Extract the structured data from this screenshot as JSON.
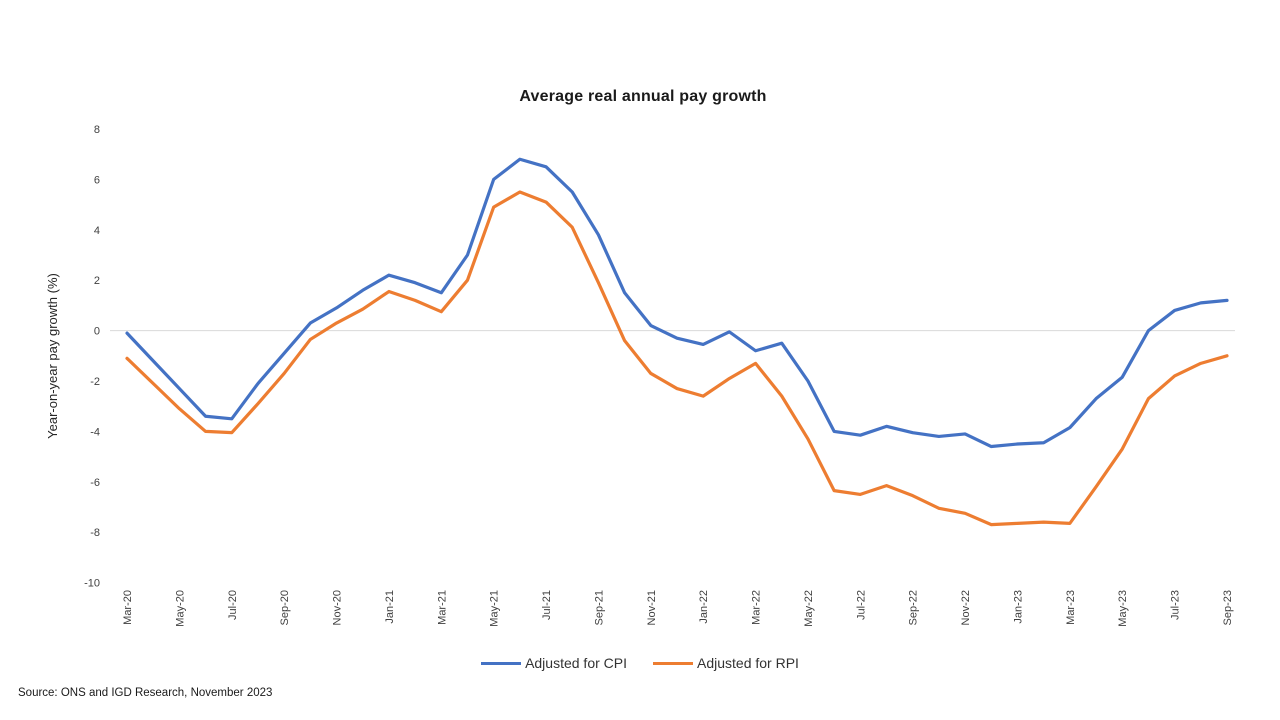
{
  "title": "Average real annual pay growth",
  "y_axis_title": "Year-on-year pay growth (%)",
  "source": "Source: ONS and IGD Research, November  2023",
  "colors": {
    "cpi_line": "#4472C4",
    "rpi_line": "#ED7D31",
    "gridline": "#D9D9D9",
    "tick_text": "#404040"
  },
  "legend": [
    {
      "label": "Adjusted for CPI",
      "color": "#4472C4"
    },
    {
      "label": "Adjusted for RPI",
      "color": "#ED7D31"
    }
  ],
  "chart_data": {
    "type": "line",
    "title": "Average real annual pay growth",
    "xlabel": "",
    "ylabel": "Year-on-year pay growth (%)",
    "ylim": [
      -10,
      8
    ],
    "y_ticks": [
      8,
      6,
      4,
      2,
      0,
      -2,
      -4,
      -6,
      -8,
      -10
    ],
    "grid": "zero-baseline only",
    "legend_position": "bottom",
    "x_tick_every": 2,
    "x": [
      "Mar-20",
      "Apr-20",
      "May-20",
      "Jun-20",
      "Jul-20",
      "Aug-20",
      "Sep-20",
      "Oct-20",
      "Nov-20",
      "Dec-20",
      "Jan-21",
      "Feb-21",
      "Mar-21",
      "Apr-21",
      "May-21",
      "Jun-21",
      "Jul-21",
      "Aug-21",
      "Sep-21",
      "Oct-21",
      "Nov-21",
      "Dec-21",
      "Jan-22",
      "Feb-22",
      "Mar-22",
      "Apr-22",
      "May-22",
      "Jun-22",
      "Jul-22",
      "Aug-22",
      "Sep-22",
      "Oct-22",
      "Nov-22",
      "Dec-22",
      "Jan-23",
      "Feb-23",
      "Mar-23",
      "Apr-23",
      "May-23",
      "Jun-23",
      "Jul-23",
      "Aug-23",
      "Sep-23"
    ],
    "series": [
      {
        "name": "Adjusted for CPI",
        "color": "#4472C4",
        "values": [
          -0.1,
          -1.2,
          -2.3,
          -3.4,
          -3.5,
          -2.1,
          -0.9,
          0.3,
          0.9,
          1.6,
          2.2,
          1.9,
          1.5,
          3.0,
          6.0,
          6.8,
          6.5,
          5.5,
          3.8,
          1.5,
          0.2,
          -0.3,
          -0.55,
          -0.05,
          -0.8,
          -0.5,
          -2.0,
          -4.0,
          -4.15,
          -3.8,
          -4.05,
          -4.2,
          -4.1,
          -4.6,
          -4.5,
          -4.45,
          -3.85,
          -2.7,
          -1.85,
          0.0,
          0.8,
          1.1,
          1.2
        ]
      },
      {
        "name": "Adjusted for RPI",
        "color": "#ED7D31",
        "values": [
          -1.1,
          -2.1,
          -3.1,
          -4.0,
          -4.05,
          -2.9,
          -1.7,
          -0.35,
          0.3,
          0.85,
          1.55,
          1.2,
          0.75,
          2.0,
          4.9,
          5.5,
          5.1,
          4.1,
          1.9,
          -0.4,
          -1.7,
          -2.3,
          -2.6,
          -1.9,
          -1.3,
          -2.6,
          -4.3,
          -6.35,
          -6.5,
          -6.15,
          -6.55,
          -7.05,
          -7.25,
          -7.7,
          -7.65,
          -7.6,
          -7.65,
          -6.2,
          -4.7,
          -2.7,
          -1.8,
          -1.3,
          -1.0
        ]
      }
    ]
  }
}
